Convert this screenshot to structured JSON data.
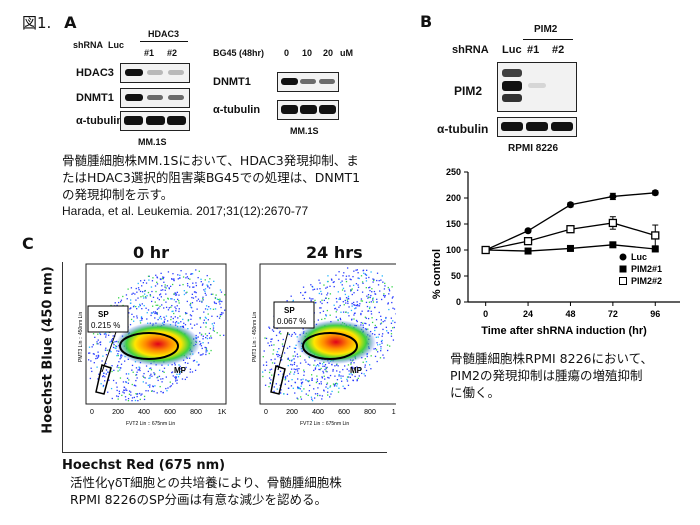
{
  "figure": {
    "title_prefix": "図1.",
    "panels": {
      "A": {
        "letter": "A",
        "left": {
          "shrna_label": "shRNA",
          "luc": "Luc",
          "hdac3_group": "HDAC3",
          "lane1": "#1",
          "lane2": "#2",
          "rows": [
            "HDAC3",
            "DNMT1",
            "α-tubulin"
          ],
          "cell_line": "MM.1S"
        },
        "right": {
          "treatment": "BG45 (48hr)",
          "doses": [
            "0",
            "10",
            "20"
          ],
          "unit": "uM",
          "rows": [
            "DNMT1",
            "α-tubulin"
          ],
          "cell_line": "MM.1S"
        },
        "caption_line1": "骨髄腫細胞株MM.1Sにおいて、HDAC3発現抑制、ま",
        "caption_line2": "たはHDAC3選択的阻害薬BG45での処理は、DNMT1",
        "caption_line3": "の発現抑制を示す。",
        "citation": "Harada, et al. Leukemia. 2017;31(12):2670-77"
      },
      "B": {
        "letter": "B",
        "shrna_label": "shRNA",
        "luc": "Luc",
        "pim2_group": "PIM2",
        "lane1": "#1",
        "lane2": "#2",
        "rows": [
          "PIM2",
          "α-tubulin"
        ],
        "cell_line": "RPMI 8226",
        "caption_line1": "骨髄腫細胞株RPMI 8226において、",
        "caption_line2": "PIM2の発現抑制は腫瘍の増殖抑制",
        "caption_line3": "に働く。"
      },
      "C": {
        "letter": "C",
        "plot1_title": "0 hr",
        "plot2_title": "24 hrs",
        "sp_label": "SP",
        "sp1_value": "0.215 %",
        "sp2_value": "0.067 %",
        "mp_label": "MP",
        "ylabel": "Hoechst Blue (450 nm)",
        "xlabel": "Hoechst Red (675 nm)",
        "inner_xlabel": "FVT2 Lin :: 675nm Lin",
        "inner_ylabel": "PMT3 Lin :: 450nm Lin",
        "ticks": [
          "0",
          "200",
          "400",
          "600",
          "800",
          "1K"
        ],
        "caption_line1": "活性化γδT細胞との共培養により、骨髄腫細胞株",
        "caption_line2": "RPMI 8226のSP分画は有意な減少を認める。"
      }
    }
  },
  "chart_data": {
    "type": "line",
    "x": [
      0,
      24,
      48,
      72,
      96
    ],
    "xticks": [
      "0",
      "24",
      "48",
      "72",
      "96"
    ],
    "xlabel": "Time after shRNA induction (hr)",
    "ylabel": "% control",
    "ylim": [
      0,
      250
    ],
    "yticks": [
      "0",
      "50",
      "100",
      "150",
      "200",
      "250"
    ],
    "legend_position": "bottom-right",
    "series": [
      {
        "name": "Luc",
        "marker": "filled-circle",
        "values": [
          100,
          137,
          187,
          203,
          210
        ],
        "errors": [
          0,
          3,
          4,
          6,
          4
        ]
      },
      {
        "name": "PIM2#1",
        "marker": "filled-square",
        "values": [
          100,
          98,
          103,
          110,
          102
        ],
        "errors": [
          0,
          4,
          4,
          4,
          5
        ]
      },
      {
        "name": "PIM2#2",
        "marker": "open-square",
        "values": [
          100,
          117,
          140,
          152,
          128
        ],
        "errors": [
          0,
          5,
          6,
          12,
          20
        ]
      }
    ]
  }
}
